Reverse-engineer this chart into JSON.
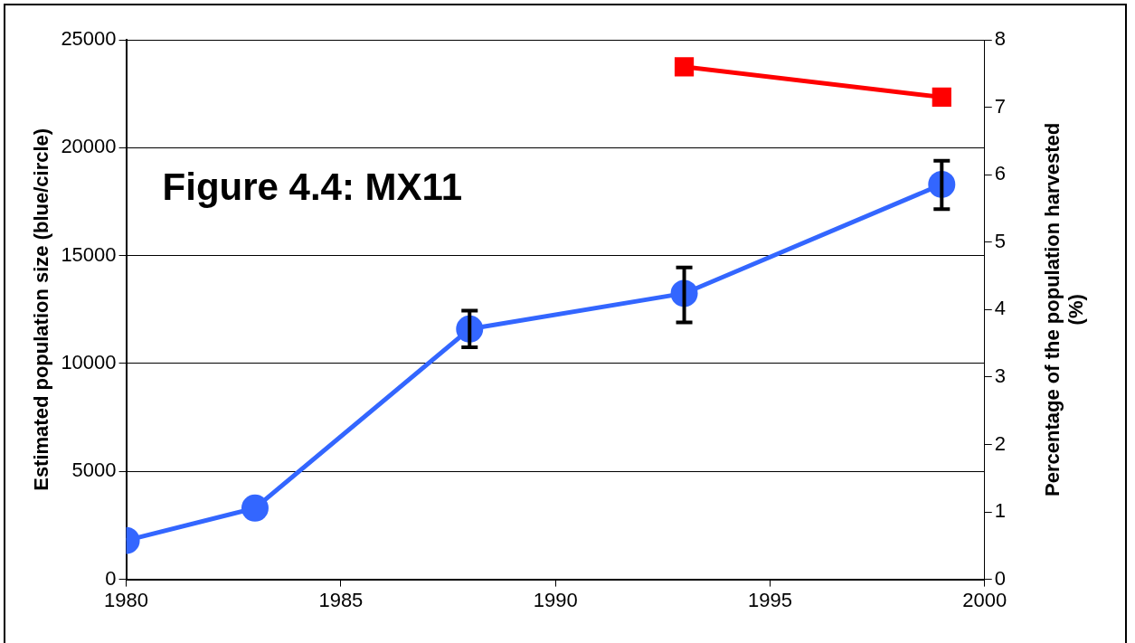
{
  "chart_data": {
    "type": "line",
    "title": "Figure 4.4: MX11",
    "ylabel": "Estimated population size (blue/circle)",
    "y2label": "Percentage of the population harvested (%)",
    "x": [
      1980,
      1983,
      1988,
      1993,
      1999
    ],
    "series": [
      {
        "color": "#3366ff",
        "marker": "circle",
        "values": [
          1800,
          3300,
          11600,
          13250,
          18300
        ],
        "errors": [
          null,
          null,
          [
            10750,
            12450
          ],
          [
            11900,
            14450
          ],
          [
            17150,
            19400
          ]
        ]
      },
      {
        "color": "#ff0000",
        "marker": "square",
        "axis": "y2",
        "x": [
          1993,
          1999
        ],
        "values": [
          7.6,
          7.15
        ]
      }
    ],
    "xlim": [
      1980,
      2000
    ],
    "xticks": [
      1980,
      1985,
      1990,
      1995,
      2000
    ],
    "ylim": [
      0,
      25000
    ],
    "yticks": [
      0,
      5000,
      10000,
      15000,
      20000,
      25000
    ],
    "y2lim": [
      0,
      8
    ],
    "y2ticks": [
      0,
      1,
      2,
      3,
      4,
      5,
      6,
      7,
      8
    ],
    "grid": "y",
    "legend": false,
    "line_style": "solid"
  }
}
